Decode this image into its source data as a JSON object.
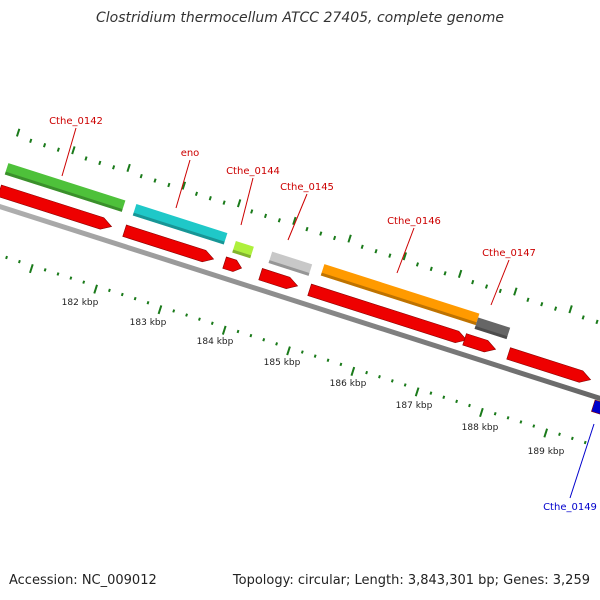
{
  "title": "Clostridium thermocellum ATCC 27405, complete genome",
  "footer": {
    "accession": "Accession: NC_009012",
    "summary": "Topology: circular; Length: 3,843,301 bp; Genes: 3,259"
  },
  "colors": {
    "background": "#ffffff",
    "backbone": "#808080",
    "forward_label": "#cc0000",
    "reverse_label": "#0000cc",
    "tick": "#1a7a1a",
    "cds": "#ee0000"
  },
  "genes": [
    {
      "label": "Cthe_0142",
      "strand": "forward",
      "color": "#4ec13a"
    },
    {
      "label": "eno",
      "strand": "forward",
      "color": "#1fc8c8"
    },
    {
      "label": "Cthe_0144",
      "strand": "forward",
      "color": "#aef03c"
    },
    {
      "label": "Cthe_0145",
      "strand": "forward",
      "color": "#c8c8c8"
    },
    {
      "label": "Cthe_0146",
      "strand": "forward",
      "color": "#ff9a00"
    },
    {
      "label": "Cthe_0147",
      "strand": "forward",
      "color": "#666666"
    },
    {
      "label": "Cthe_0149",
      "strand": "reverse",
      "color": "#0000cc"
    }
  ],
  "scale_labels": [
    "182 kbp",
    "183 kbp",
    "184 kbp",
    "185 kbp",
    "186 kbp",
    "187 kbp",
    "188 kbp",
    "189 kbp"
  ]
}
